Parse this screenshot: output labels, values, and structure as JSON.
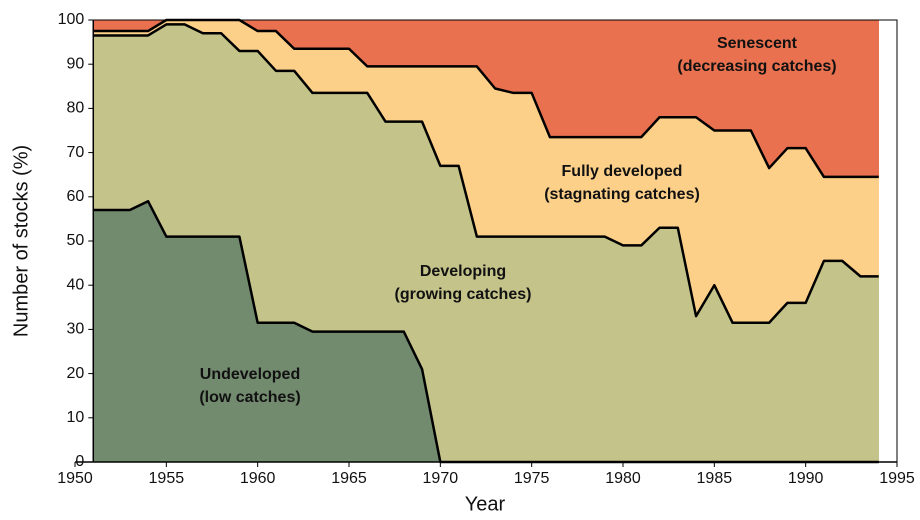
{
  "chart_data": {
    "type": "stacked_area",
    "xlabel": "Year",
    "ylabel": "Number of stocks (%)",
    "x": [
      1951,
      1952,
      1953,
      1954,
      1955,
      1956,
      1957,
      1958,
      1959,
      1960,
      1961,
      1962,
      1963,
      1964,
      1965,
      1966,
      1967,
      1968,
      1969,
      1970,
      1971,
      1972,
      1973,
      1974,
      1975,
      1976,
      1977,
      1978,
      1979,
      1980,
      1981,
      1982,
      1983,
      1984,
      1985,
      1986,
      1987,
      1988,
      1989,
      1990,
      1991,
      1992,
      1993,
      1994
    ],
    "xlim": [
      1950,
      1995
    ],
    "xticks": [
      1950,
      1955,
      1960,
      1965,
      1970,
      1975,
      1980,
      1985,
      1990,
      1995
    ],
    "ylim": [
      0,
      100
    ],
    "yticks": [
      0,
      10,
      20,
      30,
      40,
      50,
      60,
      70,
      80,
      90,
      100
    ],
    "series": [
      {
        "name": "Undeveloped",
        "description": "(low catches)",
        "color": "#728a6e",
        "values": [
          57,
          57,
          57,
          59,
          51,
          51,
          51,
          51,
          51,
          31.5,
          31.5,
          31.5,
          29.5,
          29.5,
          29.5,
          29.5,
          29.5,
          29.5,
          21,
          0,
          0,
          0,
          0,
          0,
          0,
          0,
          0,
          0,
          0,
          0,
          0,
          0,
          0,
          0,
          0,
          0,
          0,
          0,
          0,
          0,
          0,
          0,
          0,
          0
        ]
      },
      {
        "name": "Developing",
        "description": "(growing catches)",
        "color": "#c4c38a",
        "values": [
          39.5,
          39.5,
          39.5,
          37.5,
          48,
          48,
          46,
          46,
          42,
          61.5,
          57,
          57,
          54,
          54,
          54,
          54,
          47.5,
          47.5,
          56,
          67,
          67,
          51,
          51,
          51,
          51,
          51,
          51,
          51,
          51,
          49,
          49,
          53,
          53,
          33,
          40,
          31.5,
          31.5,
          31.5,
          36,
          36,
          45.5,
          45.5,
          42,
          42
        ]
      },
      {
        "name": "Fully developed",
        "description": "(stagnating catches)",
        "color": "#fdd08a",
        "values": [
          1,
          1,
          1,
          1,
          1,
          1,
          3,
          3,
          7,
          4.5,
          9,
          5,
          10,
          10,
          10,
          6,
          12.5,
          12.5,
          12.5,
          22.5,
          22.5,
          38.5,
          33.5,
          32.5,
          32.5,
          22.5,
          22.5,
          22.5,
          22.5,
          24.5,
          24.5,
          25,
          25,
          45,
          35,
          43.5,
          43.5,
          35,
          35,
          35,
          19,
          19,
          22.5,
          22.5
        ]
      },
      {
        "name": "Senescent",
        "description": "(decreasing catches)",
        "color": "#e9714f",
        "values": [
          2.5,
          2.5,
          2.5,
          2.5,
          0,
          0,
          0,
          0,
          0,
          2.5,
          2.5,
          6.5,
          6.5,
          6.5,
          6.5,
          10.5,
          10.5,
          10.5,
          10.5,
          10.5,
          10.5,
          10.5,
          15.5,
          16.5,
          16.5,
          26.5,
          26.5,
          26.5,
          26.5,
          26.5,
          26.5,
          22,
          22,
          22,
          25,
          25,
          25,
          33.5,
          29,
          29,
          35.5,
          35.5,
          35.5,
          35.5
        ]
      }
    ]
  }
}
